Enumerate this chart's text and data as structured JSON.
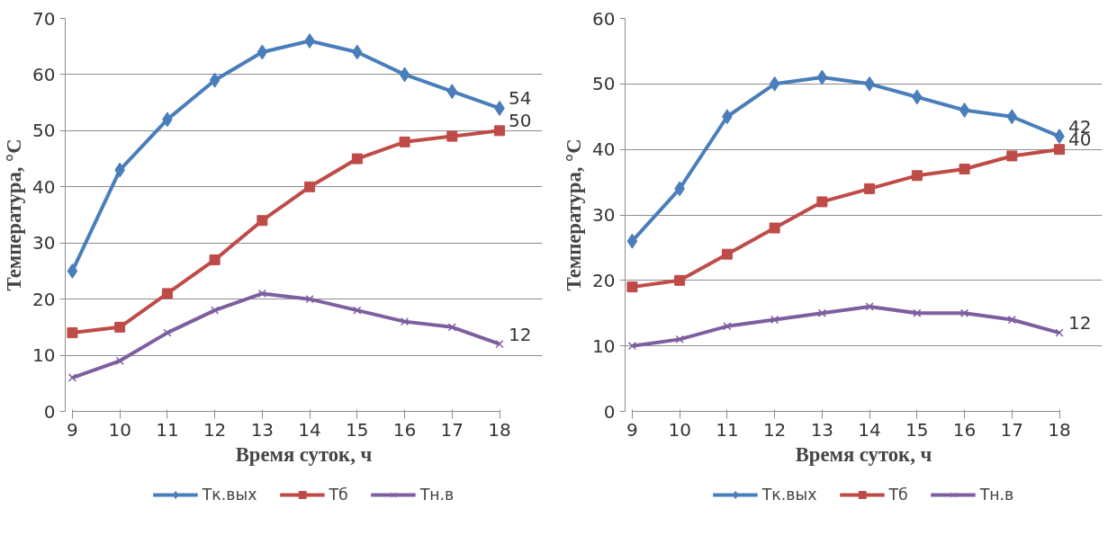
{
  "chart_data": [
    {
      "type": "line",
      "xlabel": "Время суток, ч",
      "ylabel": "Температура, °С",
      "categories": [
        "9",
        "10",
        "11",
        "12",
        "13",
        "14",
        "15",
        "16",
        "17",
        "18"
      ],
      "ylim": [
        0,
        70
      ],
      "yticks": [
        0,
        10,
        20,
        30,
        40,
        50,
        60,
        70
      ],
      "grid": "y",
      "legend": "bottom",
      "series": [
        {
          "name": "Тк.вых",
          "color": "#4a7ebb",
          "marker": "diamond",
          "values": [
            25,
            43,
            52,
            59,
            64,
            66,
            64,
            60,
            57,
            54
          ],
          "value_labels": [
            null,
            null,
            null,
            null,
            null,
            null,
            null,
            null,
            null,
            "54"
          ]
        },
        {
          "name": "Тб",
          "color": "#be4b48",
          "marker": "square",
          "values": [
            14,
            15,
            21,
            27,
            34,
            40,
            45,
            48,
            49,
            50
          ],
          "value_labels": [
            null,
            null,
            null,
            null,
            null,
            null,
            null,
            null,
            null,
            "50"
          ]
        },
        {
          "name": "Тн.в",
          "color": "#7d5fa0",
          "marker": "cross",
          "values": [
            6,
            9,
            14,
            18,
            21,
            20,
            18,
            16,
            15,
            12
          ],
          "value_labels": [
            null,
            null,
            null,
            null,
            null,
            null,
            null,
            null,
            null,
            "12"
          ]
        }
      ]
    },
    {
      "type": "line",
      "xlabel": "Время суток, ч",
      "ylabel": "Температура, °С",
      "categories": [
        "9",
        "10",
        "11",
        "12",
        "13",
        "14",
        "15",
        "16",
        "17",
        "18"
      ],
      "ylim": [
        0,
        60
      ],
      "yticks": [
        0,
        10,
        20,
        30,
        40,
        50,
        60
      ],
      "grid": "y",
      "legend": "bottom",
      "series": [
        {
          "name": "Тк.вых",
          "color": "#4a7ebb",
          "marker": "diamond",
          "values": [
            26,
            34,
            45,
            50,
            51,
            50,
            48,
            46,
            45,
            42
          ],
          "value_labels": [
            null,
            null,
            null,
            null,
            null,
            null,
            null,
            null,
            null,
            "42"
          ]
        },
        {
          "name": "Тб",
          "color": "#be4b48",
          "marker": "square",
          "values": [
            19,
            20,
            24,
            28,
            32,
            34,
            36,
            37,
            39,
            40
          ],
          "value_labels": [
            null,
            null,
            null,
            null,
            null,
            null,
            null,
            null,
            null,
            "40"
          ]
        },
        {
          "name": "Тн.в",
          "color": "#7d5fa0",
          "marker": "cross",
          "values": [
            10,
            11,
            13,
            14,
            15,
            16,
            15,
            15,
            14,
            12
          ],
          "value_labels": [
            null,
            null,
            null,
            null,
            null,
            null,
            null,
            null,
            null,
            "12"
          ]
        }
      ]
    }
  ]
}
